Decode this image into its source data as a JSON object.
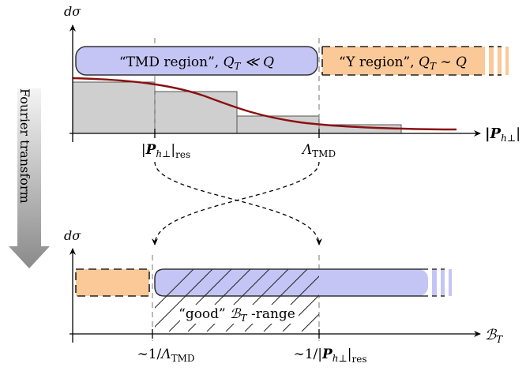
{
  "colors": {
    "tmd_fill": "#c5c5f5",
    "tmd_stroke": "#333333",
    "y_fill": "#fbc898",
    "bar_fill": "#cfcfcf",
    "curve": "#8b1010",
    "arrow_gray_top": "#f4f4f4",
    "arrow_gray_bottom": "#8a8a8a",
    "dash_guide": "#777777"
  },
  "top_plot": {
    "y_axis_label": "dσ",
    "x_axis_label": "|P",
    "x_axis_sub": "h⊥",
    "x_axis_close": "|",
    "tmd_region": {
      "quote_open": "“TMD region”, ",
      "math": "Q",
      "math_sub": "T",
      "math_rest": " ≪ Q"
    },
    "y_region": {
      "quote_open": "“Y region”, ",
      "math": "Q",
      "math_sub": "T",
      "math_rest": " ∼ Q"
    },
    "tick_res": {
      "open": "|",
      "bold": "P",
      "sub": "h⊥",
      "close": "|",
      "sub2": "res"
    },
    "tick_lambda": {
      "main": "Λ",
      "sub": "TMD"
    }
  },
  "side_arrow": {
    "label": "Fourier transform"
  },
  "bottom_plot": {
    "y_axis_label": "dσ",
    "x_axis_label": "ℬ",
    "x_axis_sub": "T",
    "good_range": {
      "quote": "“good” ",
      "math": "ℬ",
      "math_sub": "T",
      "rest": " -range"
    },
    "tick_inv_lambda": {
      "prefix": "∼1/",
      "main": "Λ",
      "sub": "TMD"
    },
    "tick_inv_res": {
      "prefix": "∼1/|",
      "bold": "P",
      "sub": "h⊥",
      "close": "|",
      "sub2": "res"
    }
  }
}
